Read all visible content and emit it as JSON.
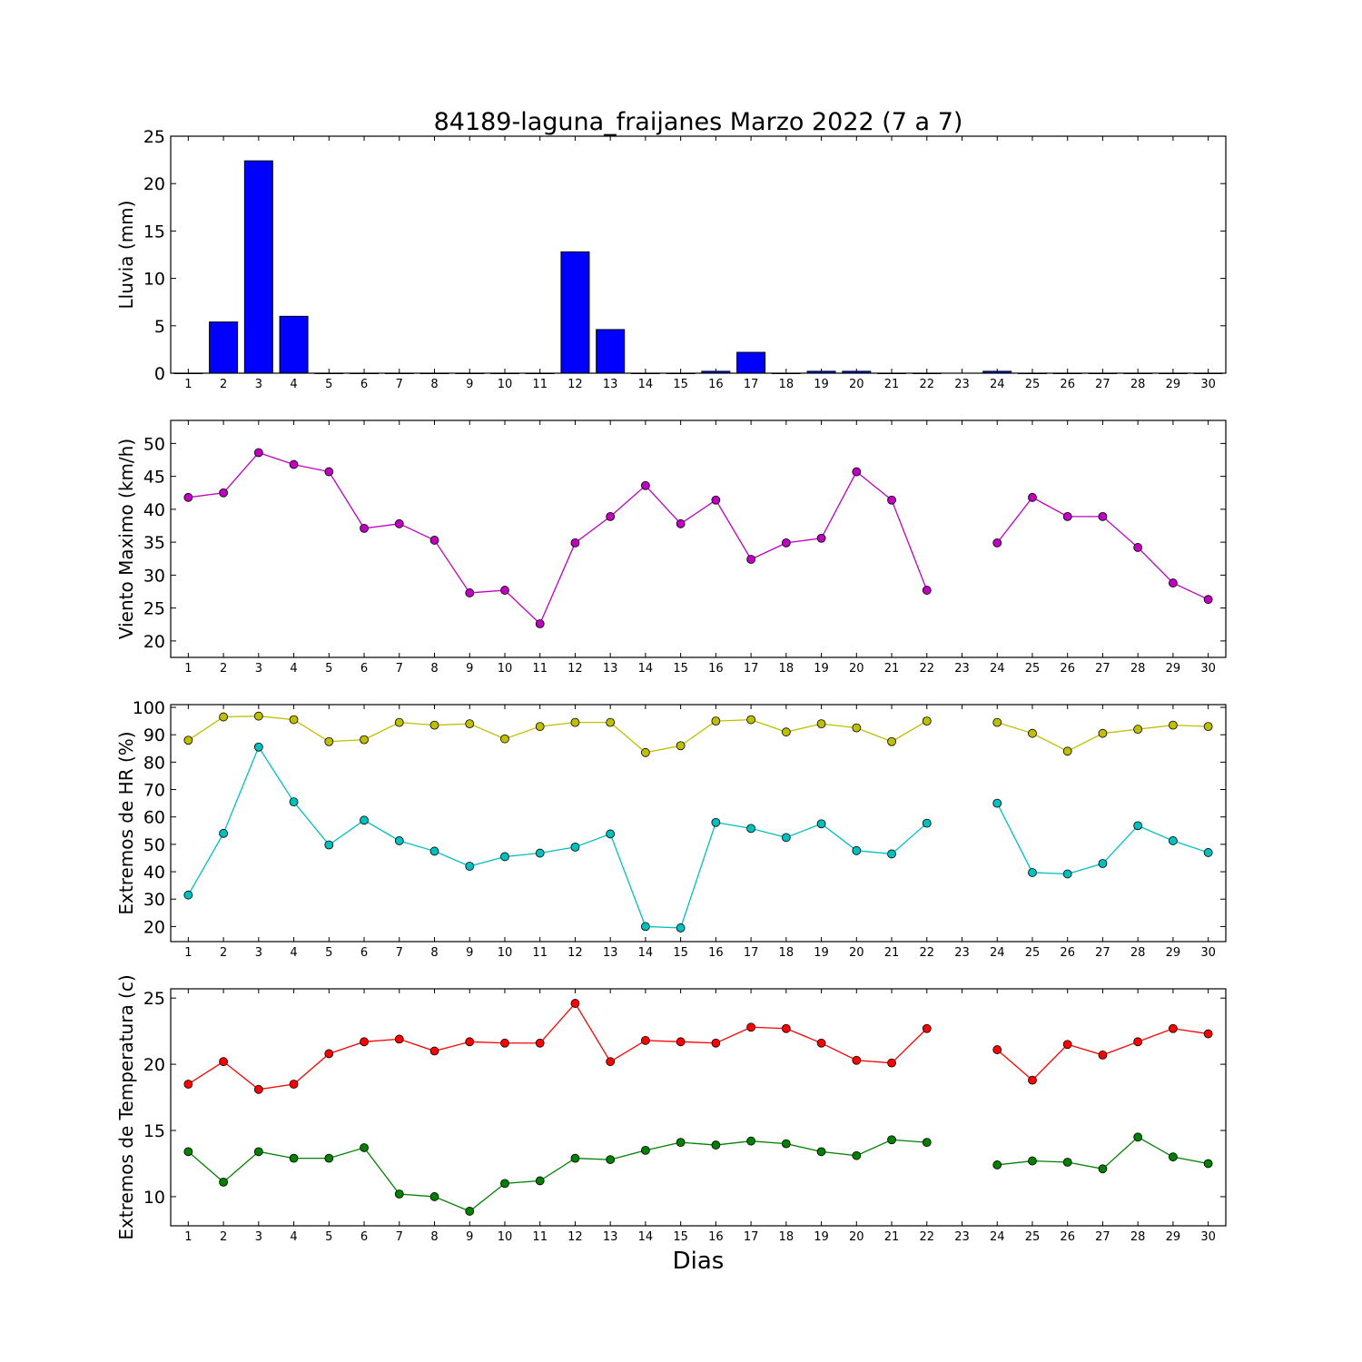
{
  "title": "84189-laguna_fraijanes Marzo 2022  (7 a 7)",
  "xlabel": "Dias",
  "days": [
    1,
    2,
    3,
    4,
    5,
    6,
    7,
    8,
    9,
    10,
    11,
    12,
    13,
    14,
    15,
    16,
    17,
    18,
    19,
    20,
    21,
    22,
    23,
    24,
    25,
    26,
    27,
    28,
    29,
    30
  ],
  "chart_data": [
    {
      "type": "bar",
      "ylabel": "Lluvia (mm)",
      "ylim": [
        0,
        25
      ],
      "yticks": [
        0,
        5,
        10,
        15,
        20,
        25
      ],
      "x": [
        1,
        2,
        3,
        4,
        5,
        6,
        7,
        8,
        9,
        10,
        11,
        12,
        13,
        14,
        15,
        16,
        17,
        18,
        19,
        20,
        21,
        22,
        23,
        24,
        25,
        26,
        27,
        28,
        29,
        30
      ],
      "series": [
        {
          "color": "#0000ff",
          "values": [
            0,
            5.4,
            22.4,
            6.0,
            0,
            0,
            0,
            0,
            0,
            0,
            0,
            12.8,
            4.6,
            0,
            0,
            0.2,
            2.2,
            0,
            0.2,
            0.2,
            0,
            0,
            null,
            0.2,
            0,
            0,
            0,
            0,
            0,
            0
          ]
        }
      ]
    },
    {
      "type": "line",
      "ylabel": "Viento Maximo (km/h)",
      "ylim": [
        17.5,
        53.5
      ],
      "yticks": [
        20,
        25,
        30,
        35,
        40,
        45,
        50
      ],
      "x": [
        1,
        2,
        3,
        4,
        5,
        6,
        7,
        8,
        9,
        10,
        11,
        12,
        13,
        14,
        15,
        16,
        17,
        18,
        19,
        20,
        21,
        22,
        23,
        24,
        25,
        26,
        27,
        28,
        29,
        30
      ],
      "series": [
        {
          "color": "#bf00bf",
          "values": [
            41.8,
            42.5,
            48.6,
            46.8,
            45.7,
            37.1,
            37.8,
            35.3,
            27.3,
            27.7,
            22.6,
            34.9,
            38.9,
            43.6,
            37.8,
            41.4,
            32.4,
            34.9,
            35.6,
            45.7,
            41.4,
            27.7,
            null,
            34.9,
            41.8,
            38.9,
            38.9,
            34.2,
            28.8,
            26.3
          ]
        }
      ]
    },
    {
      "type": "line",
      "ylabel": "Extremos de HR (%)",
      "ylim": [
        14.5,
        101
      ],
      "yticks": [
        20,
        30,
        40,
        50,
        60,
        70,
        80,
        90,
        100
      ],
      "x": [
        1,
        2,
        3,
        4,
        5,
        6,
        7,
        8,
        9,
        10,
        11,
        12,
        13,
        14,
        15,
        16,
        17,
        18,
        19,
        20,
        21,
        22,
        23,
        24,
        25,
        26,
        27,
        28,
        29,
        30
      ],
      "series": [
        {
          "color": "#bfbf00",
          "values": [
            88,
            96.5,
            96.8,
            95.5,
            87.5,
            88.2,
            94.5,
            93.5,
            94,
            88.5,
            93,
            94.5,
            94.5,
            83.5,
            86,
            95,
            95.5,
            91,
            94,
            92.5,
            87.5,
            95,
            null,
            94.5,
            90.5,
            84,
            90.5,
            92,
            93.5,
            93
          ]
        },
        {
          "color": "#00bfbf",
          "values": [
            31.5,
            54,
            85.5,
            65.5,
            49.8,
            58.8,
            51.3,
            47.5,
            42,
            45.5,
            46.8,
            49,
            53.8,
            20,
            19.5,
            58,
            55.8,
            52.5,
            57.5,
            47.7,
            46.5,
            57.7,
            null,
            65,
            39.7,
            39.2,
            43,
            56.8,
            51.3,
            47
          ]
        }
      ]
    },
    {
      "type": "line",
      "ylabel": "Extremos de Temperatura (c)",
      "ylim": [
        7.8,
        25.7
      ],
      "yticks": [
        10,
        15,
        20,
        25
      ],
      "x": [
        1,
        2,
        3,
        4,
        5,
        6,
        7,
        8,
        9,
        10,
        11,
        12,
        13,
        14,
        15,
        16,
        17,
        18,
        19,
        20,
        21,
        22,
        23,
        24,
        25,
        26,
        27,
        28,
        29,
        30
      ],
      "series": [
        {
          "color": "#ff0000",
          "values": [
            18.5,
            20.2,
            18.1,
            18.5,
            20.8,
            21.7,
            21.9,
            21,
            21.7,
            21.6,
            21.6,
            24.6,
            20.2,
            21.8,
            21.7,
            21.6,
            22.8,
            22.7,
            21.6,
            20.3,
            20.1,
            22.7,
            null,
            21.1,
            18.8,
            21.5,
            20.7,
            21.7,
            22.7,
            22.3
          ]
        },
        {
          "color": "#008000",
          "values": [
            13.4,
            11.1,
            13.4,
            12.9,
            12.9,
            13.7,
            10.2,
            10,
            8.9,
            11,
            11.2,
            12.9,
            12.8,
            13.5,
            14.1,
            13.9,
            14.2,
            14,
            13.4,
            13.1,
            14.3,
            14.1,
            null,
            12.4,
            12.7,
            12.6,
            12.1,
            14.5,
            13,
            12.5
          ]
        }
      ]
    }
  ]
}
